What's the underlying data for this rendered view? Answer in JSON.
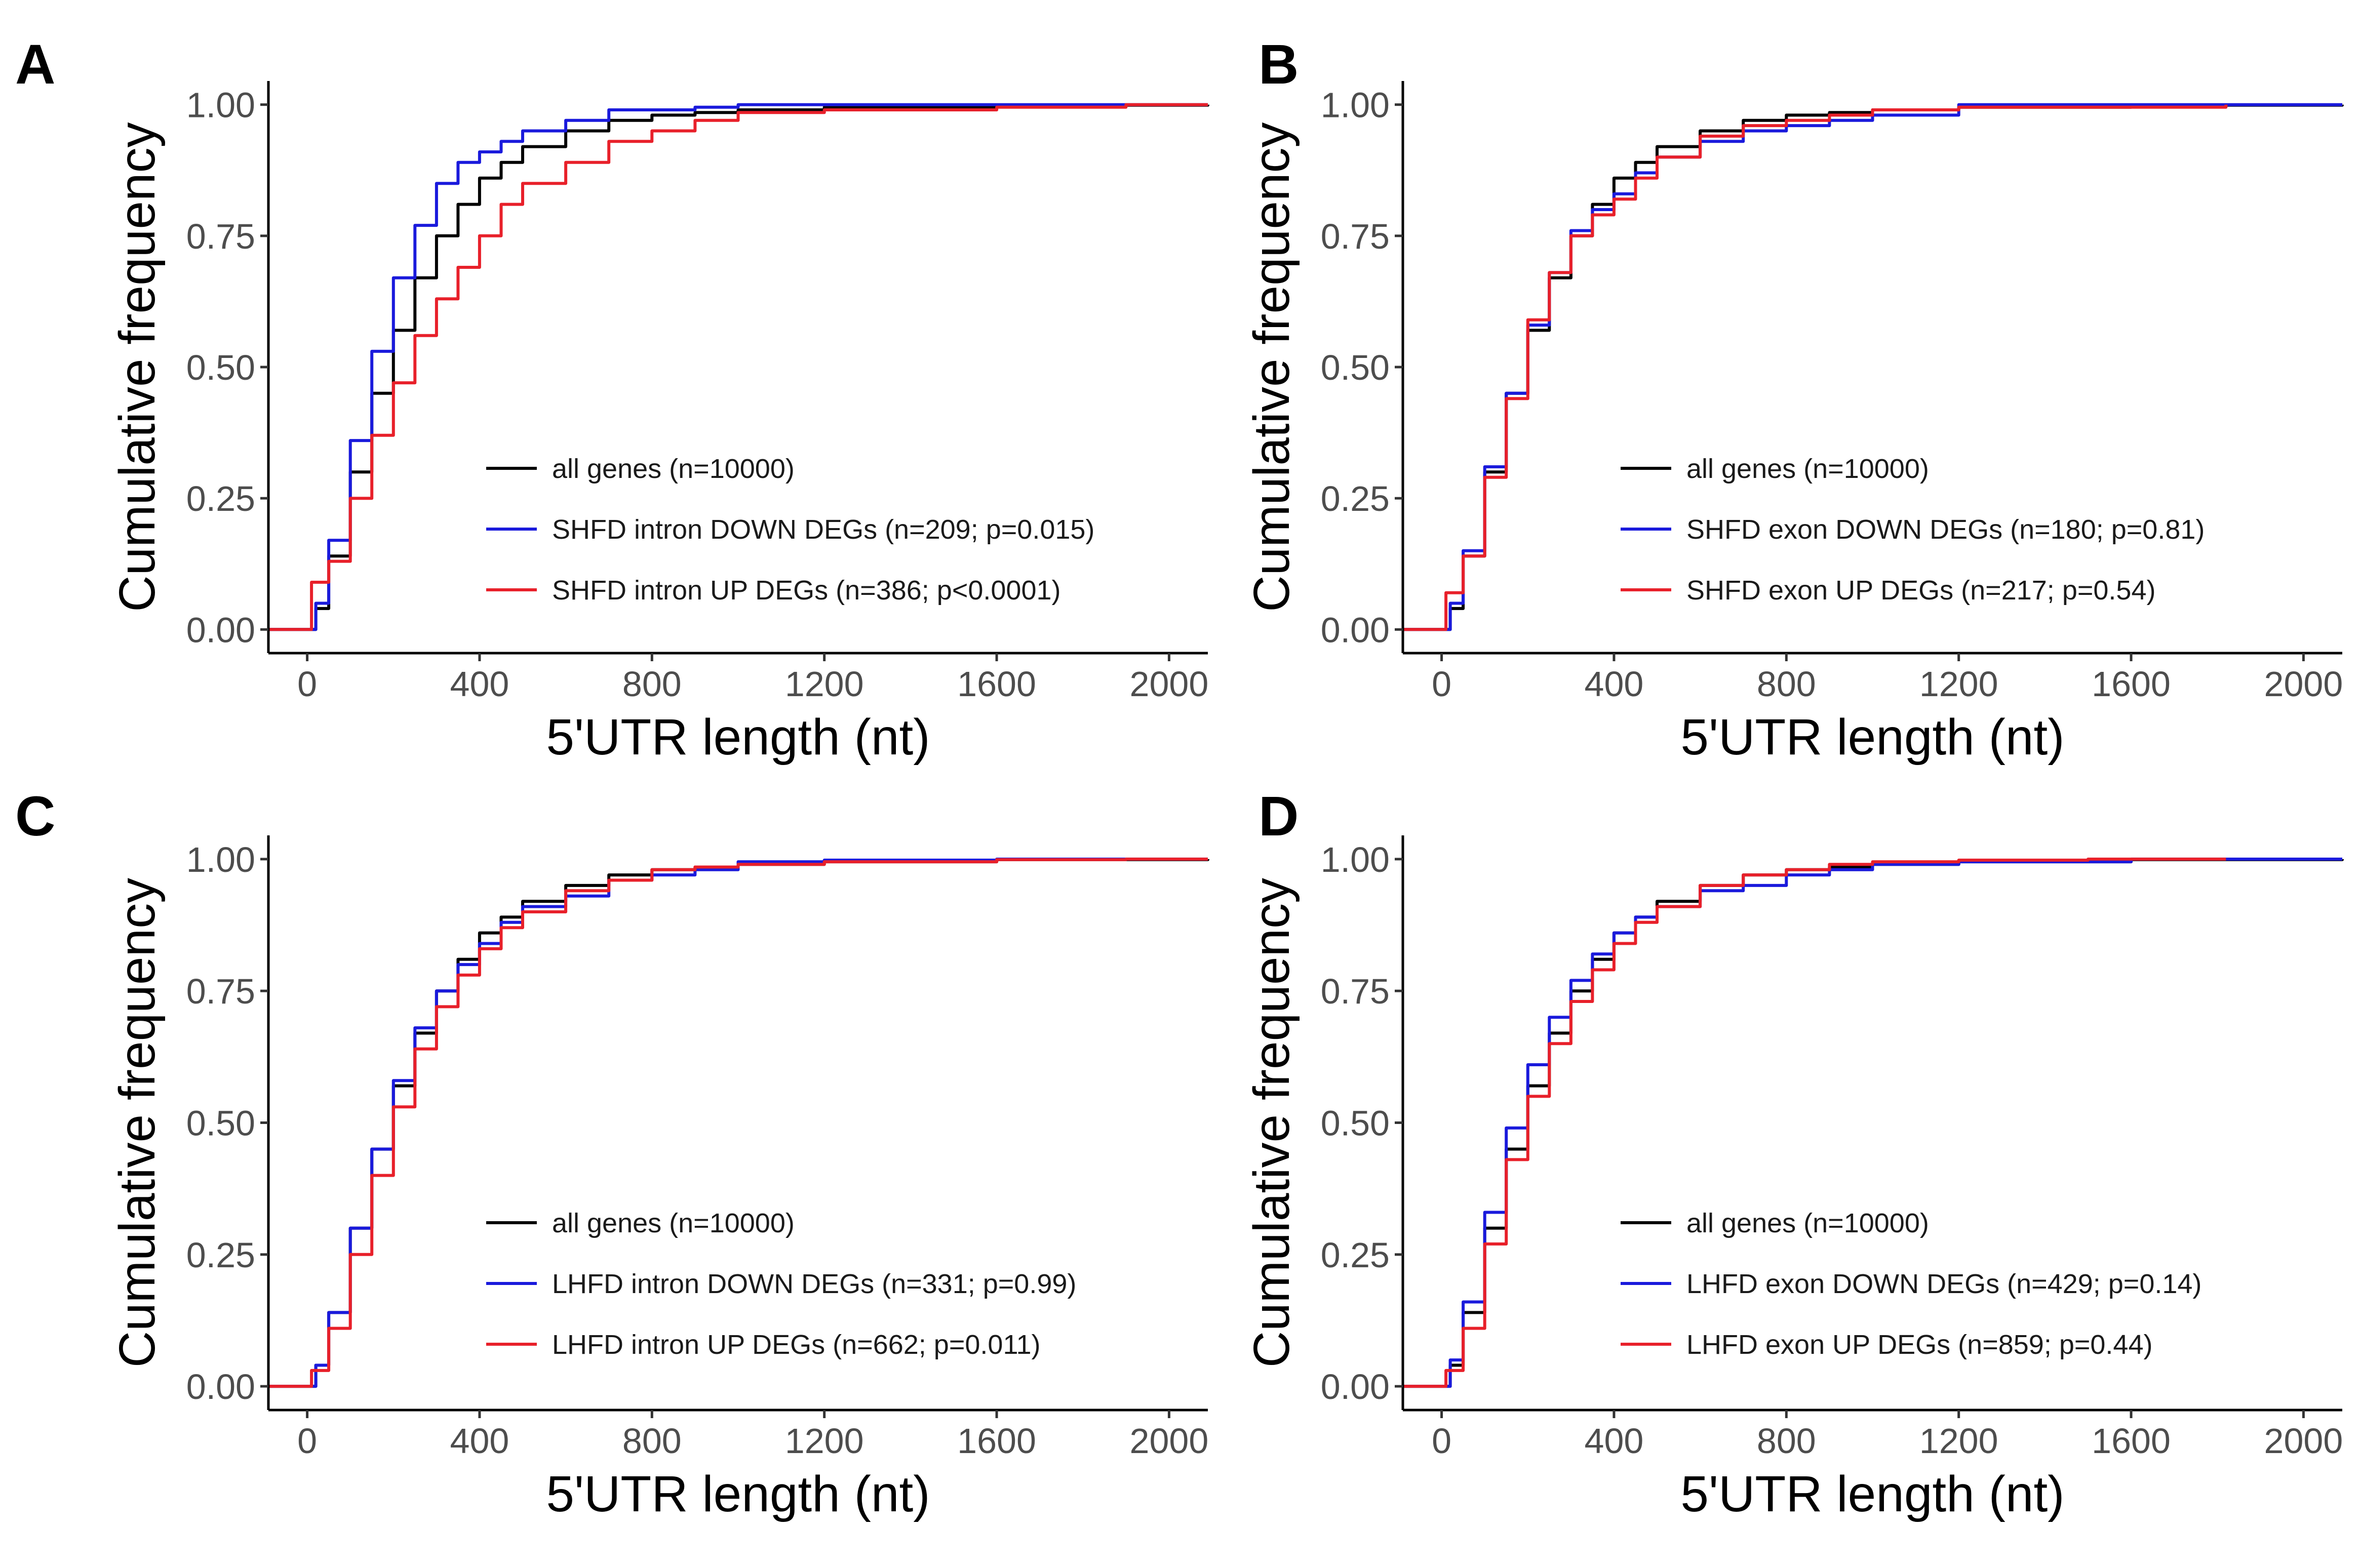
{
  "chart_data": [
    {
      "panel": "A",
      "type": "line",
      "step": true,
      "xlabel": "5'UTR length (nt)",
      "ylabel": "Cumulative frequency",
      "xlim": [
        -90,
        2090
      ],
      "ylim": [
        0,
        1
      ],
      "xticks": [
        0,
        400,
        800,
        1200,
        1600,
        2000
      ],
      "yticks": [
        0,
        0.25,
        0.5,
        0.75,
        1
      ],
      "ytick_labels": [
        "0.00",
        "0.25",
        "0.50",
        "0.75",
        "1.00"
      ],
      "grid": false,
      "legend_position": "center-right",
      "series": [
        {
          "name": "all genes (n=10000)",
          "color": "#000000",
          "x": [
            -90,
            0,
            20,
            50,
            100,
            150,
            200,
            250,
            300,
            350,
            400,
            450,
            500,
            600,
            700,
            800,
            900,
            1000,
            1200,
            1600,
            2090
          ],
          "y": [
            0,
            0,
            0.04,
            0.14,
            0.3,
            0.45,
            0.57,
            0.67,
            0.75,
            0.81,
            0.86,
            0.89,
            0.92,
            0.95,
            0.97,
            0.98,
            0.985,
            0.99,
            0.995,
            0.999,
            1.0
          ]
        },
        {
          "name": "SHFD intron DOWN DEGs (n=209; p=0.015)",
          "color": "#1a1adc",
          "x": [
            -90,
            0,
            20,
            50,
            100,
            150,
            200,
            250,
            300,
            350,
            400,
            450,
            500,
            600,
            700,
            800,
            900,
            1000,
            1200,
            1600,
            2090
          ],
          "y": [
            0,
            0,
            0.05,
            0.17,
            0.36,
            0.53,
            0.67,
            0.77,
            0.85,
            0.89,
            0.91,
            0.93,
            0.95,
            0.97,
            0.99,
            0.99,
            0.995,
            1.0,
            1.0,
            1.0,
            1.0
          ]
        },
        {
          "name": "SHFD intron UP DEGs (n=386; p<0.0001)",
          "color": "#e8202a",
          "x": [
            -90,
            0,
            10,
            50,
            100,
            150,
            200,
            250,
            300,
            350,
            400,
            450,
            500,
            600,
            700,
            800,
            900,
            1000,
            1200,
            1600,
            1900,
            2090
          ],
          "y": [
            0,
            0,
            0.09,
            0.13,
            0.25,
            0.37,
            0.47,
            0.56,
            0.63,
            0.69,
            0.75,
            0.81,
            0.85,
            0.89,
            0.93,
            0.95,
            0.97,
            0.985,
            0.99,
            0.995,
            1.0,
            1.0
          ]
        }
      ]
    },
    {
      "panel": "B",
      "type": "line",
      "step": true,
      "xlabel": "5'UTR length (nt)",
      "ylabel": "Cumulative frequency",
      "xlim": [
        -90,
        2090
      ],
      "ylim": [
        0,
        1
      ],
      "xticks": [
        0,
        400,
        800,
        1200,
        1600,
        2000
      ],
      "yticks": [
        0,
        0.25,
        0.5,
        0.75,
        1
      ],
      "ytick_labels": [
        "0.00",
        "0.25",
        "0.50",
        "0.75",
        "1.00"
      ],
      "grid": false,
      "legend_position": "center-right",
      "series": [
        {
          "name": "all genes (n=10000)",
          "color": "#000000",
          "x": [
            -90,
            0,
            20,
            50,
            100,
            150,
            200,
            250,
            300,
            350,
            400,
            450,
            500,
            600,
            700,
            800,
            900,
            1000,
            1200,
            1600,
            2090
          ],
          "y": [
            0,
            0,
            0.04,
            0.14,
            0.3,
            0.45,
            0.57,
            0.67,
            0.75,
            0.81,
            0.86,
            0.89,
            0.92,
            0.95,
            0.97,
            0.98,
            0.985,
            0.99,
            0.995,
            0.999,
            1.0
          ]
        },
        {
          "name": "SHFD exon DOWN DEGs (n=180; p=0.81)",
          "color": "#1a1adc",
          "x": [
            -90,
            0,
            20,
            50,
            100,
            150,
            200,
            250,
            300,
            350,
            400,
            450,
            500,
            600,
            700,
            800,
            900,
            1000,
            1200,
            1600,
            2090
          ],
          "y": [
            0,
            0,
            0.05,
            0.15,
            0.31,
            0.45,
            0.58,
            0.68,
            0.76,
            0.8,
            0.83,
            0.87,
            0.9,
            0.93,
            0.95,
            0.96,
            0.97,
            0.98,
            1.0,
            1.0,
            1.0
          ]
        },
        {
          "name": "SHFD exon UP DEGs (n=217; p=0.54)",
          "color": "#e8202a",
          "x": [
            -90,
            0,
            10,
            50,
            100,
            150,
            200,
            250,
            300,
            350,
            400,
            450,
            500,
            600,
            700,
            800,
            900,
            1000,
            1200,
            1820
          ],
          "y": [
            0,
            0,
            0.07,
            0.14,
            0.29,
            0.44,
            0.59,
            0.68,
            0.75,
            0.79,
            0.82,
            0.86,
            0.9,
            0.94,
            0.96,
            0.97,
            0.98,
            0.99,
            0.995,
            1.0
          ]
        }
      ]
    },
    {
      "panel": "C",
      "type": "line",
      "step": true,
      "xlabel": "5'UTR length (nt)",
      "ylabel": "Cumulative frequency",
      "xlim": [
        -90,
        2090
      ],
      "ylim": [
        0,
        1
      ],
      "xticks": [
        0,
        400,
        800,
        1200,
        1600,
        2000
      ],
      "yticks": [
        0,
        0.25,
        0.5,
        0.75,
        1
      ],
      "ytick_labels": [
        "0.00",
        "0.25",
        "0.50",
        "0.75",
        "1.00"
      ],
      "grid": false,
      "legend_position": "center-right",
      "series": [
        {
          "name": "all genes (n=10000)",
          "color": "#000000",
          "x": [
            -90,
            0,
            20,
            50,
            100,
            150,
            200,
            250,
            300,
            350,
            400,
            450,
            500,
            600,
            700,
            800,
            900,
            1000,
            1200,
            1600,
            2090
          ],
          "y": [
            0,
            0,
            0.04,
            0.14,
            0.3,
            0.45,
            0.57,
            0.67,
            0.75,
            0.81,
            0.86,
            0.89,
            0.92,
            0.95,
            0.97,
            0.98,
            0.985,
            0.99,
            0.995,
            0.999,
            1.0
          ]
        },
        {
          "name": "LHFD intron DOWN DEGs (n=331; p=0.99)",
          "color": "#1a1adc",
          "x": [
            -90,
            0,
            20,
            50,
            100,
            150,
            200,
            250,
            300,
            350,
            400,
            450,
            500,
            600,
            700,
            800,
            900,
            1000,
            1200,
            1600,
            1930,
            2090
          ],
          "y": [
            0,
            0,
            0.04,
            0.14,
            0.3,
            0.45,
            0.58,
            0.68,
            0.75,
            0.8,
            0.84,
            0.88,
            0.91,
            0.93,
            0.96,
            0.97,
            0.98,
            0.995,
            0.998,
            1.0,
            1.0,
            1.0
          ]
        },
        {
          "name": "LHFD intron UP DEGs (n=662; p=0.011)",
          "color": "#e8202a",
          "x": [
            -90,
            0,
            10,
            50,
            100,
            150,
            200,
            250,
            300,
            350,
            400,
            450,
            500,
            600,
            700,
            800,
            900,
            1000,
            1200,
            1600,
            1900,
            2090
          ],
          "y": [
            0,
            0,
            0.03,
            0.11,
            0.25,
            0.4,
            0.53,
            0.64,
            0.72,
            0.78,
            0.83,
            0.87,
            0.9,
            0.94,
            0.96,
            0.98,
            0.985,
            0.99,
            0.995,
            0.999,
            1.0,
            1.0
          ]
        }
      ]
    },
    {
      "panel": "D",
      "type": "line",
      "step": true,
      "xlabel": "5'UTR length (nt)",
      "ylabel": "Cumulative frequency",
      "xlim": [
        -90,
        2090
      ],
      "ylim": [
        0,
        1
      ],
      "xticks": [
        0,
        400,
        800,
        1200,
        1600,
        2000
      ],
      "yticks": [
        0,
        0.25,
        0.5,
        0.75,
        1
      ],
      "ytick_labels": [
        "0.00",
        "0.25",
        "0.50",
        "0.75",
        "1.00"
      ],
      "grid": false,
      "legend_position": "center-right",
      "series": [
        {
          "name": "all genes (n=10000)",
          "color": "#000000",
          "x": [
            -90,
            0,
            20,
            50,
            100,
            150,
            200,
            250,
            300,
            350,
            400,
            450,
            500,
            600,
            700,
            800,
            900,
            1000,
            1200,
            1600,
            2090
          ],
          "y": [
            0,
            0,
            0.04,
            0.14,
            0.3,
            0.45,
            0.57,
            0.67,
            0.75,
            0.81,
            0.86,
            0.89,
            0.92,
            0.95,
            0.97,
            0.98,
            0.985,
            0.99,
            0.995,
            0.999,
            1.0
          ]
        },
        {
          "name": "LHFD exon DOWN DEGs (n=429; p=0.14)",
          "color": "#1a1adc",
          "x": [
            -90,
            0,
            20,
            50,
            100,
            150,
            200,
            250,
            300,
            350,
            400,
            450,
            500,
            600,
            700,
            800,
            900,
            1000,
            1200,
            1600,
            2090
          ],
          "y": [
            0,
            0,
            0.05,
            0.16,
            0.33,
            0.49,
            0.61,
            0.7,
            0.77,
            0.82,
            0.86,
            0.89,
            0.91,
            0.94,
            0.95,
            0.97,
            0.98,
            0.99,
            0.995,
            1.0,
            1.0
          ]
        },
        {
          "name": "LHFD exon UP DEGs (n=859; p=0.44)",
          "color": "#e8202a",
          "x": [
            -90,
            0,
            10,
            50,
            100,
            150,
            200,
            250,
            300,
            350,
            400,
            450,
            500,
            600,
            700,
            800,
            900,
            1000,
            1200,
            1500,
            1820
          ],
          "y": [
            0,
            0,
            0.03,
            0.11,
            0.27,
            0.43,
            0.55,
            0.65,
            0.73,
            0.79,
            0.84,
            0.88,
            0.91,
            0.95,
            0.97,
            0.98,
            0.99,
            0.995,
            0.998,
            1.0,
            1.0
          ]
        }
      ]
    }
  ]
}
